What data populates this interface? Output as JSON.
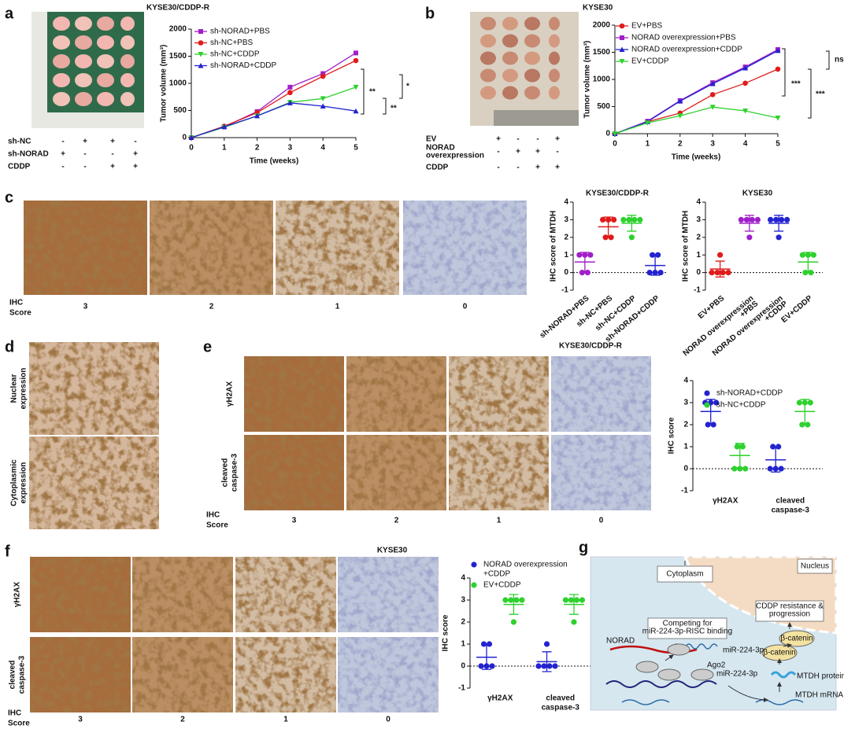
{
  "letters": [
    "a",
    "b",
    "c",
    "d",
    "e",
    "f",
    "g"
  ],
  "group_tables": [
    {
      "rows": [
        {
          "label": [
            "sh-NC"
          ],
          "signs": [
            "-",
            "+",
            "+",
            "-"
          ]
        },
        {
          "label": [
            "sh-NORAD"
          ],
          "signs": [
            "+",
            "-",
            "-",
            "+"
          ]
        },
        {
          "label": [
            "CDDP"
          ],
          "signs": [
            "-",
            "-",
            "+",
            "+"
          ]
        }
      ]
    },
    {
      "rows": [
        {
          "label": [
            "EV"
          ],
          "signs": [
            "+",
            "-",
            "-",
            "+"
          ]
        },
        {
          "label": [
            "NORAD",
            "overexpression"
          ],
          "signs": [
            "-",
            "+",
            "+",
            "-"
          ]
        },
        {
          "label": [
            "CDDP"
          ],
          "signs": [
            "-",
            "-",
            "+",
            "+"
          ]
        }
      ]
    }
  ],
  "image_panels": [
    {
      "score_label": [
        "IHC",
        "Score"
      ],
      "scores": [
        3,
        2,
        1,
        0
      ]
    },
    {
      "rows": [
        [
          "Nuclear",
          "expression"
        ],
        [
          "Cytoplasmic",
          "expression"
        ]
      ]
    },
    {
      "score_label": [
        "IHC",
        "Score"
      ],
      "scores": [
        3,
        2,
        1,
        0
      ],
      "rows": [
        [
          "γH2AX"
        ],
        [
          "cleaved",
          "caspase-3"
        ]
      ]
    },
    {
      "score_label": [
        "IHC",
        "Score"
      ],
      "scores": [
        3,
        2,
        1,
        0
      ],
      "rows": [
        [
          "γH2AX"
        ],
        [
          "cleaved",
          "caspase-3"
        ]
      ]
    }
  ],
  "chart_data": [
    {
      "type": "line",
      "title": "KYSE30/CDDP-R",
      "xlabel": "Time (weeks)",
      "ylabel": "Tumor volume (mm³)",
      "x": [
        0,
        1,
        2,
        3,
        4,
        5
      ],
      "xlim": [
        0,
        5
      ],
      "xticks": [
        0,
        1,
        2,
        3,
        4,
        5
      ],
      "ylim": [
        0,
        2000
      ],
      "yticks": [
        0,
        500,
        1000,
        1500,
        2000
      ],
      "series": [
        {
          "name": "sh-NORAD+PBS",
          "color": "#a020c8",
          "marker": "square",
          "values": [
            0,
            200,
            480,
            930,
            1180,
            1560
          ]
        },
        {
          "name": "sh-NC+PBS",
          "color": "#e01b1b",
          "marker": "circle",
          "values": [
            0,
            210,
            460,
            830,
            1130,
            1420
          ]
        },
        {
          "name": "sh-NC+CDDP",
          "color": "#2ed12e",
          "marker": "down",
          "values": [
            0,
            190,
            400,
            650,
            720,
            930
          ]
        },
        {
          "name": "sh-NORAD+CDDP",
          "color": "#2323d0",
          "marker": "up",
          "values": [
            0,
            200,
            400,
            640,
            580,
            490
          ]
        }
      ],
      "annotations": [
        "**",
        "**",
        "*"
      ]
    },
    {
      "type": "line",
      "title": "KYSE30",
      "xlabel": "Time (weeks)",
      "ylabel": "Tumor volume (mm³)",
      "x": [
        0,
        1,
        2,
        3,
        4,
        5
      ],
      "xlim": [
        0,
        5
      ],
      "xticks": [
        0,
        1,
        2,
        3,
        4,
        5
      ],
      "ylim": [
        0,
        2000
      ],
      "yticks": [
        0,
        500,
        1000,
        1500,
        2000
      ],
      "series": [
        {
          "name": "EV+PBS",
          "color": "#e01b1b",
          "marker": "circle",
          "values": [
            0,
            220,
            380,
            720,
            930,
            1190
          ]
        },
        {
          "name": "NORAD overexpression+PBS",
          "color": "#a020c8",
          "marker": "square",
          "values": [
            0,
            230,
            610,
            940,
            1230,
            1550
          ]
        },
        {
          "name": "NORAD overexpression+CDDP",
          "color": "#2323d0",
          "marker": "up",
          "values": [
            0,
            220,
            600,
            920,
            1210,
            1530
          ]
        },
        {
          "name": "EV+CDDP",
          "color": "#2ed12e",
          "marker": "down",
          "values": [
            0,
            200,
            330,
            490,
            420,
            290
          ]
        }
      ],
      "annotations": [
        "***",
        "***",
        "ns"
      ]
    },
    {
      "type": "dot",
      "title": "KYSE30/CDDP-R",
      "ylabel": "IHC score of MTDH",
      "ylim": [
        -1,
        4
      ],
      "yticks": [
        -1,
        0,
        1,
        2,
        3,
        4
      ],
      "categories": [
        "sh-NORAD+PBS",
        "sh-NC+PBS",
        "sh-NC+CDDP",
        "sh-NORAD+CDDP"
      ],
      "colors": [
        "#a020c8",
        "#e01b1b",
        "#2ed12e",
        "#2323d0"
      ],
      "points": [
        [
          0,
          0,
          1,
          1,
          1
        ],
        [
          2,
          2,
          3,
          3,
          3
        ],
        [
          2,
          3,
          3,
          3,
          3
        ],
        [
          0,
          0,
          0,
          1,
          1
        ]
      ],
      "mean": [
        0.6,
        2.6,
        2.8,
        0.4
      ],
      "sd": [
        0.55,
        0.55,
        0.45,
        0.55
      ]
    },
    {
      "type": "dot",
      "title": "KYSE30",
      "ylabel": "IHC score of MTDH",
      "ylim": [
        -1,
        4
      ],
      "yticks": [
        -1,
        0,
        1,
        2,
        3,
        4
      ],
      "categories": [
        "EV+PBS",
        [
          "NORAD overexpression",
          "+PBS"
        ],
        [
          "NORAD overexpression",
          "+CDDP"
        ],
        "EV+CDDP"
      ],
      "colors": [
        "#e01b1b",
        "#a020c8",
        "#2323d0",
        "#2ed12e"
      ],
      "points": [
        [
          0,
          0,
          0,
          0,
          1
        ],
        [
          2,
          3,
          3,
          3,
          3
        ],
        [
          2,
          3,
          3,
          3,
          3
        ],
        [
          0,
          0,
          1,
          1,
          1
        ]
      ],
      "mean": [
        0.2,
        2.8,
        2.8,
        0.6
      ],
      "sd": [
        0.45,
        0.45,
        0.45,
        0.55
      ]
    },
    {
      "type": "dot",
      "title": "KYSE30/CDDP-R",
      "ylabel": "IHC score",
      "ylim": [
        -1,
        4
      ],
      "yticks": [
        -1,
        0,
        1,
        2,
        3,
        4
      ],
      "categories": [
        "γH2AX",
        [
          "cleaved",
          "caspase-3"
        ]
      ],
      "series": [
        {
          "name": "sh-NORAD+CDDP",
          "color": "#2323d0",
          "points": [
            [
              2,
              3,
              3,
              3,
              2
            ],
            [
              0,
              0,
              0,
              1,
              1
            ]
          ],
          "mean": [
            2.6,
            0.4
          ],
          "sd": [
            0.55,
            0.55
          ]
        },
        {
          "name": "sh-NC+CDDP",
          "color": "#2ed12e",
          "points": [
            [
              0,
              0,
              0,
              1,
              1
            ],
            [
              2,
              3,
              3,
              3,
              2
            ]
          ],
          "mean": [
            0.6,
            2.6
          ],
          "sd": [
            0.55,
            0.55
          ]
        }
      ]
    },
    {
      "type": "dot",
      "title": "KYSE30",
      "ylabel": "IHC score",
      "ylim": [
        -1,
        4
      ],
      "yticks": [
        -1,
        0,
        1,
        2,
        3,
        4
      ],
      "categories": [
        "γH2AX",
        [
          "cleaved",
          "caspase-3"
        ]
      ],
      "series": [
        {
          "name": [
            "NORAD overexpression",
            "+CDDP"
          ],
          "color": "#2323d0",
          "points": [
            [
              0,
              0,
              0,
              1,
              1
            ],
            [
              0,
              0,
              0,
              0,
              1
            ]
          ],
          "mean": [
            0.4,
            0.2
          ],
          "sd": [
            0.55,
            0.45
          ]
        },
        {
          "name": "EV+CDDP",
          "color": "#2ed12e",
          "points": [
            [
              2,
              3,
              3,
              3,
              3
            ],
            [
              2,
              3,
              3,
              3,
              3
            ]
          ],
          "mean": [
            2.8,
            2.8
          ],
          "sd": [
            0.45,
            0.45
          ]
        }
      ]
    }
  ],
  "diagram": {
    "compartments": [
      "Cytoplasm",
      "Nucleus"
    ],
    "boxes": [
      [
        "CDDP resistance &",
        "progression"
      ],
      [
        "Competing for",
        "miR-224-3p-RISC binding"
      ]
    ],
    "labels": [
      "NORAD",
      "miR-224-3p",
      "Ago2",
      "miR-224-3p",
      "β-catenin",
      "β-catenin",
      "MTDH protein",
      "MTDH mRNA"
    ]
  }
}
